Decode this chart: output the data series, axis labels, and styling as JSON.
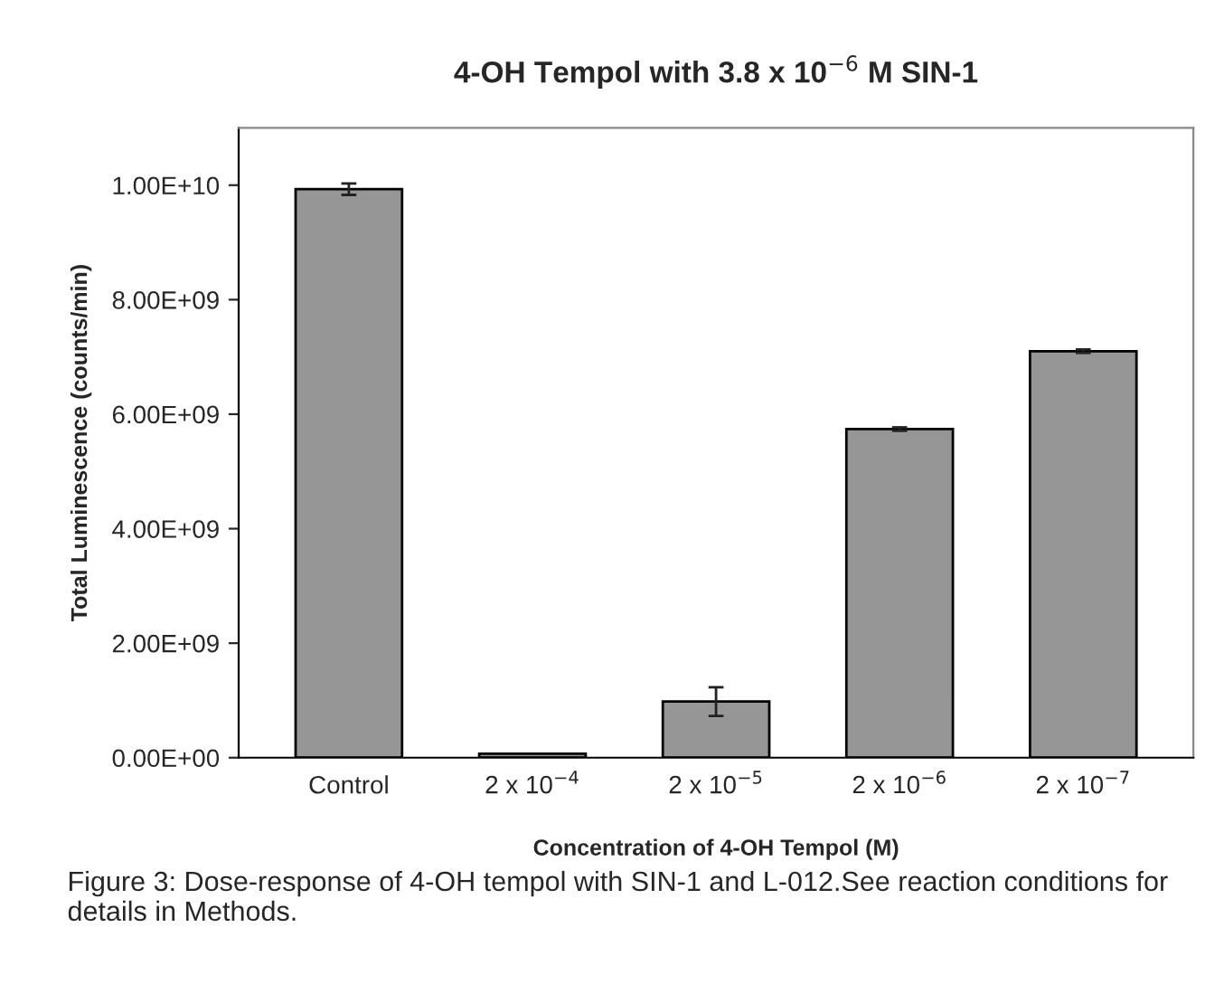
{
  "chart_data": {
    "type": "bar",
    "title": "4-OH Tempol with 3.8 x 10$^{−6}$ M SIN-1",
    "xlabel": "Concentration of 4-OH Tempol (M)",
    "ylabel": "Total Luminescence (counts/min)",
    "categories": [
      "Control",
      "2 x 10$^{−4}$",
      "2 x 10$^{−5}$",
      "2 x 10$^{−6}$",
      "2 x 10$^{−7}$"
    ],
    "values": [
      9930000000.0,
      70000000.0,
      980000000.0,
      5740000000.0,
      7100000000.0
    ],
    "errors": [
      100000000.0,
      null,
      250000000.0,
      30000000.0,
      30000000.0
    ],
    "color": "#969696",
    "ylim": [
      0,
      11000000000.0
    ],
    "yticks": [
      {
        "value": 0,
        "label": "0.00E+00"
      },
      {
        "value": 2000000000.0,
        "label": "2.00E+09"
      },
      {
        "value": 4000000000.0,
        "label": "4.00E+09"
      },
      {
        "value": 6000000000.0,
        "label": "6.00E+09"
      },
      {
        "value": 8000000000.0,
        "label": "8.00E+09"
      },
      {
        "value": 10000000000.0,
        "label": "1.00E+10"
      }
    ],
    "grid": false,
    "annotations": [
      "Figure 3: Dose-response of 4-OH tempol with SIN-1 and L-012.See reaction conditions for details in Methods."
    ]
  }
}
